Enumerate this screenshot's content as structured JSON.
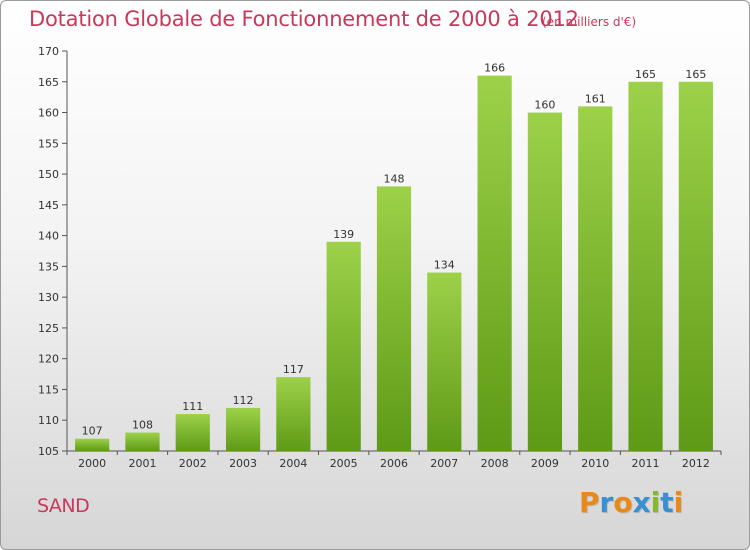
{
  "header": {
    "title": "Dotation Globale de Fonctionnement de 2000 à 2012",
    "unit": "(en milliers d'€)"
  },
  "footer": {
    "place": "SAND",
    "logo_letters": [
      {
        "ch": "P",
        "color": "#e8891a"
      },
      {
        "ch": "r",
        "color": "#3a8fd0"
      },
      {
        "ch": "o",
        "color": "#e8891a"
      },
      {
        "ch": "x",
        "color": "#3a8fd0"
      },
      {
        "ch": "i",
        "color": "#86b82a"
      },
      {
        "ch": "t",
        "color": "#3a8fd0"
      },
      {
        "ch": "i",
        "color": "#e8891a"
      }
    ]
  },
  "chart_data": {
    "type": "bar",
    "categories": [
      "2000",
      "2001",
      "2002",
      "2003",
      "2004",
      "2005",
      "2006",
      "2007",
      "2008",
      "2009",
      "2010",
      "2011",
      "2012"
    ],
    "values": [
      107,
      108,
      111,
      112,
      117,
      139,
      148,
      134,
      166,
      160,
      161,
      165,
      165
    ],
    "title": "Dotation Globale de Fonctionnement de 2000 à 2012",
    "subtitle": "(en milliers d'€)",
    "ylim": [
      105,
      170
    ],
    "yticks": [
      105,
      110,
      115,
      120,
      125,
      130,
      135,
      140,
      145,
      150,
      155,
      160,
      165,
      170
    ],
    "grid": false,
    "bar_color_top": "#9dd14a",
    "bar_color_bottom": "#5e9a16"
  }
}
